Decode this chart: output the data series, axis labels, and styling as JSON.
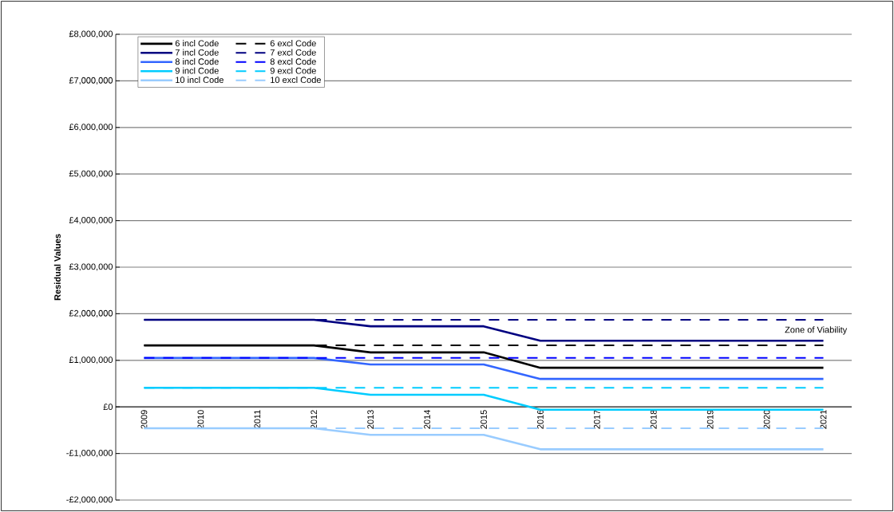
{
  "chart_data": {
    "type": "line",
    "ylabel": "Residual Values",
    "categories": [
      "2009",
      "2010",
      "2011",
      "2012",
      "2013",
      "2014",
      "2015",
      "2016",
      "2017",
      "2018",
      "2019",
      "2020",
      "2021"
    ],
    "ylim": [
      -2000000,
      8000000
    ],
    "yticks": [
      {
        "value": -2000000,
        "label": "-£2,000,000"
      },
      {
        "value": -1000000,
        "label": "-£1,000,000"
      },
      {
        "value": 0,
        "label": "£0"
      },
      {
        "value": 1000000,
        "label": "£1,000,000"
      },
      {
        "value": 2000000,
        "label": "£2,000,000"
      },
      {
        "value": 3000000,
        "label": "£3,000,000"
      },
      {
        "value": 4000000,
        "label": "£4,000,000"
      },
      {
        "value": 5000000,
        "label": "£5,000,000"
      },
      {
        "value": 6000000,
        "label": "£6,000,000"
      },
      {
        "value": 7000000,
        "label": "£7,000,000"
      },
      {
        "value": 8000000,
        "label": "£8,000,000"
      }
    ],
    "grid": "y",
    "legend": "top left",
    "annotations": [
      "Zone of Viability"
    ],
    "series": [
      {
        "name": "6 incl Code",
        "color": "#000000",
        "line_style": "solid",
        "values": [
          1320000,
          1320000,
          1320000,
          1320000,
          1170000,
          1170000,
          1170000,
          840000,
          840000,
          840000,
          840000,
          840000,
          840000
        ]
      },
      {
        "name": "6 excl Code",
        "color": "#000000",
        "line_style": "dashed",
        "values": [
          1320000,
          1320000,
          1320000,
          1320000,
          1320000,
          1320000,
          1320000,
          1320000,
          1320000,
          1320000,
          1320000,
          1320000,
          1320000
        ]
      },
      {
        "name": "7 incl Code",
        "color": "#000080",
        "line_style": "solid",
        "values": [
          1870000,
          1870000,
          1870000,
          1870000,
          1730000,
          1730000,
          1730000,
          1420000,
          1420000,
          1420000,
          1420000,
          1420000,
          1420000
        ]
      },
      {
        "name": "7 excl Code",
        "color": "#000080",
        "line_style": "dashed",
        "values": [
          1870000,
          1870000,
          1870000,
          1870000,
          1870000,
          1870000,
          1870000,
          1870000,
          1870000,
          1870000,
          1870000,
          1870000,
          1870000
        ]
      },
      {
        "name": "8 incl Code",
        "color": "#3366ff",
        "line_style": "solid",
        "values": [
          1050000,
          1050000,
          1050000,
          1050000,
          910000,
          910000,
          910000,
          600000,
          600000,
          600000,
          600000,
          600000,
          600000
        ]
      },
      {
        "name": "8 excl Code",
        "color": "#0000ff",
        "line_style": "dashed",
        "values": [
          1050000,
          1050000,
          1050000,
          1050000,
          1050000,
          1050000,
          1050000,
          1050000,
          1050000,
          1050000,
          1050000,
          1050000,
          1050000
        ]
      },
      {
        "name": "9 incl Code",
        "color": "#00ccff",
        "line_style": "solid",
        "values": [
          410000,
          410000,
          410000,
          410000,
          260000,
          260000,
          260000,
          -60000,
          -60000,
          -60000,
          -60000,
          -60000,
          -60000
        ]
      },
      {
        "name": "9 excl Code",
        "color": "#00ccff",
        "line_style": "dashed",
        "values": [
          410000,
          410000,
          410000,
          410000,
          410000,
          410000,
          410000,
          410000,
          410000,
          410000,
          410000,
          410000,
          410000
        ]
      },
      {
        "name": "10 incl Code",
        "color": "#99ccff",
        "line_style": "solid",
        "values": [
          -460000,
          -460000,
          -460000,
          -460000,
          -600000,
          -600000,
          -600000,
          -910000,
          -910000,
          -910000,
          -910000,
          -910000,
          -910000
        ]
      },
      {
        "name": "10 excl Code",
        "color": "#99ccff",
        "line_style": "dashed",
        "values": [
          -460000,
          -460000,
          -460000,
          -460000,
          -460000,
          -460000,
          -460000,
          -460000,
          -460000,
          -460000,
          -460000,
          -460000,
          -460000
        ]
      }
    ]
  }
}
